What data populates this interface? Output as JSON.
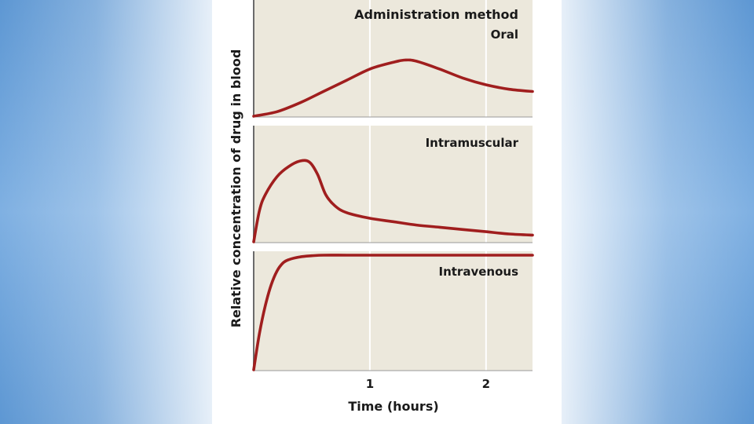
{
  "chart_data": {
    "type": "line",
    "title": "Administration method",
    "xlabel": "Time (hours)",
    "ylabel": "Relative concentration of drug in blood",
    "x_ticks": [
      1,
      2
    ],
    "xlim": [
      0,
      2.4
    ],
    "ylim": [
      0,
      1
    ],
    "grid": true,
    "series": [
      {
        "name": "Oral",
        "x": [
          0,
          0.2,
          0.4,
          0.6,
          0.8,
          1.0,
          1.2,
          1.3,
          1.4,
          1.6,
          1.8,
          2.0,
          2.2,
          2.4
        ],
        "values": [
          0,
          0.04,
          0.12,
          0.22,
          0.32,
          0.42,
          0.48,
          0.5,
          0.49,
          0.42,
          0.34,
          0.28,
          0.24,
          0.22
        ]
      },
      {
        "name": "Intramuscular",
        "x": [
          0,
          0.05,
          0.1,
          0.2,
          0.3,
          0.4,
          0.48,
          0.55,
          0.62,
          0.7,
          0.8,
          1.0,
          1.2,
          1.4,
          1.6,
          1.8,
          2.0,
          2.2,
          2.4
        ],
        "values": [
          0,
          0.28,
          0.42,
          0.58,
          0.67,
          0.72,
          0.71,
          0.6,
          0.42,
          0.32,
          0.26,
          0.21,
          0.18,
          0.15,
          0.13,
          0.11,
          0.09,
          0.07,
          0.06
        ]
      },
      {
        "name": "Intravenous",
        "x": [
          0,
          0.05,
          0.1,
          0.15,
          0.2,
          0.25,
          0.3,
          0.4,
          0.5,
          0.6,
          0.8,
          1.0,
          1.5,
          2.0,
          2.4
        ],
        "values": [
          0,
          0.32,
          0.56,
          0.74,
          0.86,
          0.93,
          0.96,
          0.985,
          0.995,
          1.0,
          1.0,
          1.0,
          1.0,
          1.0,
          1.0
        ]
      }
    ],
    "colors": {
      "curve": "#a01e1e",
      "panel_bg": "#ece8dc",
      "gridline": "#ffffff"
    }
  }
}
